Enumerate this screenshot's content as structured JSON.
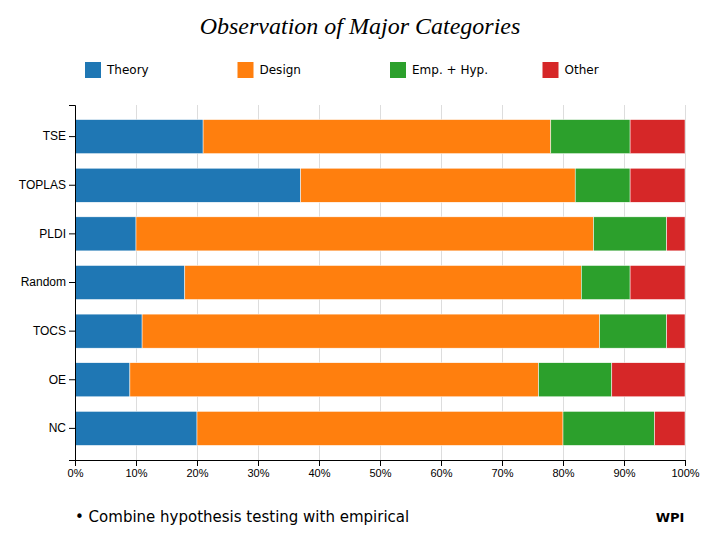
{
  "chart_data": {
    "type": "bar",
    "orientation": "horizontal",
    "stacked": true,
    "title": "Observation of Major Categories",
    "subtitle": "• Combine hypothesis testing with empirical",
    "annotations": [
      "WPI"
    ],
    "categories": [
      "NC",
      "OE",
      "TOCS",
      "Random",
      "PLDI",
      "TOPLAS",
      "TSE"
    ],
    "series": [
      {
        "name": "Theory",
        "values": [
          20,
          9,
          11,
          18,
          10,
          37,
          21
        ]
      },
      {
        "name": "Design",
        "values": [
          60,
          67,
          75,
          65,
          75,
          45,
          57
        ]
      },
      {
        "name": "Emp. + Hyp.",
        "values": [
          15,
          12,
          11,
          8,
          12,
          9,
          13
        ]
      },
      {
        "name": "Other",
        "values": [
          5,
          12,
          3,
          9,
          3,
          9,
          9
        ]
      }
    ],
    "xlim": [
      0,
      100
    ],
    "xticks": [
      {
        "value": 0,
        "label": "0%"
      },
      {
        "value": 10,
        "label": "10%"
      },
      {
        "value": 20,
        "label": "20%"
      },
      {
        "value": 30,
        "label": "30%"
      },
      {
        "value": 40,
        "label": "40%"
      },
      {
        "value": 50,
        "label": "50%"
      },
      {
        "value": 60,
        "label": "60%"
      },
      {
        "value": 70,
        "label": "70%"
      },
      {
        "value": 80,
        "label": "80%"
      },
      {
        "value": 90,
        "label": "90%"
      },
      {
        "value": 100,
        "label": "100%"
      }
    ],
    "grid": true,
    "legend": "top"
  }
}
